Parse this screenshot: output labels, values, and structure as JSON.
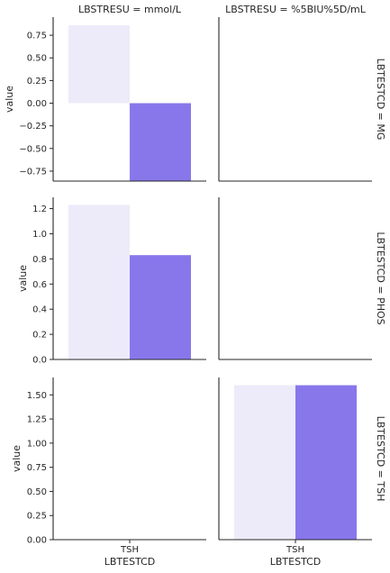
{
  "chart_data": {
    "type": "bar",
    "col_titles": [
      "LBSTRESU = mmol/L",
      "LBSTRESU = %5BIU%5D/mL"
    ],
    "row_titles": [
      "LBTESTCD = MG",
      "LBTESTCD = PHOS",
      "LBTESTCD = TSH"
    ],
    "ylabel": "value",
    "xlabel": "LBTESTCD",
    "x_tick_labels": [
      "TSH",
      "TSH"
    ],
    "colors": {
      "light": "#edebfa",
      "dark": "#8877eb",
      "axis": "#262626"
    },
    "panels": [
      {
        "row": 0,
        "col": 0,
        "ylim": [
          -0.86,
          0.95
        ],
        "yticks": [
          -0.75,
          -0.5,
          -0.25,
          0.0,
          0.25,
          0.5,
          0.75
        ],
        "ytick_labels": [
          "−0.75",
          "−0.50",
          "−0.25",
          "0.00",
          "0.25",
          "0.50",
          "0.75"
        ],
        "bars": [
          {
            "value": 0.86,
            "color": "light"
          },
          {
            "value": -0.86,
            "color": "dark"
          }
        ]
      },
      {
        "row": 0,
        "col": 1,
        "bars": []
      },
      {
        "row": 1,
        "col": 0,
        "ylim": [
          0,
          1.29
        ],
        "yticks": [
          0.0,
          0.2,
          0.4,
          0.6,
          0.8,
          1.0,
          1.2
        ],
        "ytick_labels": [
          "0.0",
          "0.2",
          "0.4",
          "0.6",
          "0.8",
          "1.0",
          "1.2"
        ],
        "bars": [
          {
            "value": 1.23,
            "color": "light"
          },
          {
            "value": 0.83,
            "color": "dark"
          }
        ]
      },
      {
        "row": 1,
        "col": 1,
        "bars": []
      },
      {
        "row": 2,
        "col": 0,
        "ylim": [
          0,
          1.68
        ],
        "yticks": [
          0.0,
          0.25,
          0.5,
          0.75,
          1.0,
          1.25,
          1.5
        ],
        "ytick_labels": [
          "0.00",
          "0.25",
          "0.50",
          "0.75",
          "1.00",
          "1.25",
          "1.50"
        ],
        "bars": []
      },
      {
        "row": 2,
        "col": 1,
        "bars": [
          {
            "value": 1.6,
            "color": "light"
          },
          {
            "value": 1.6,
            "color": "dark"
          }
        ]
      }
    ]
  }
}
